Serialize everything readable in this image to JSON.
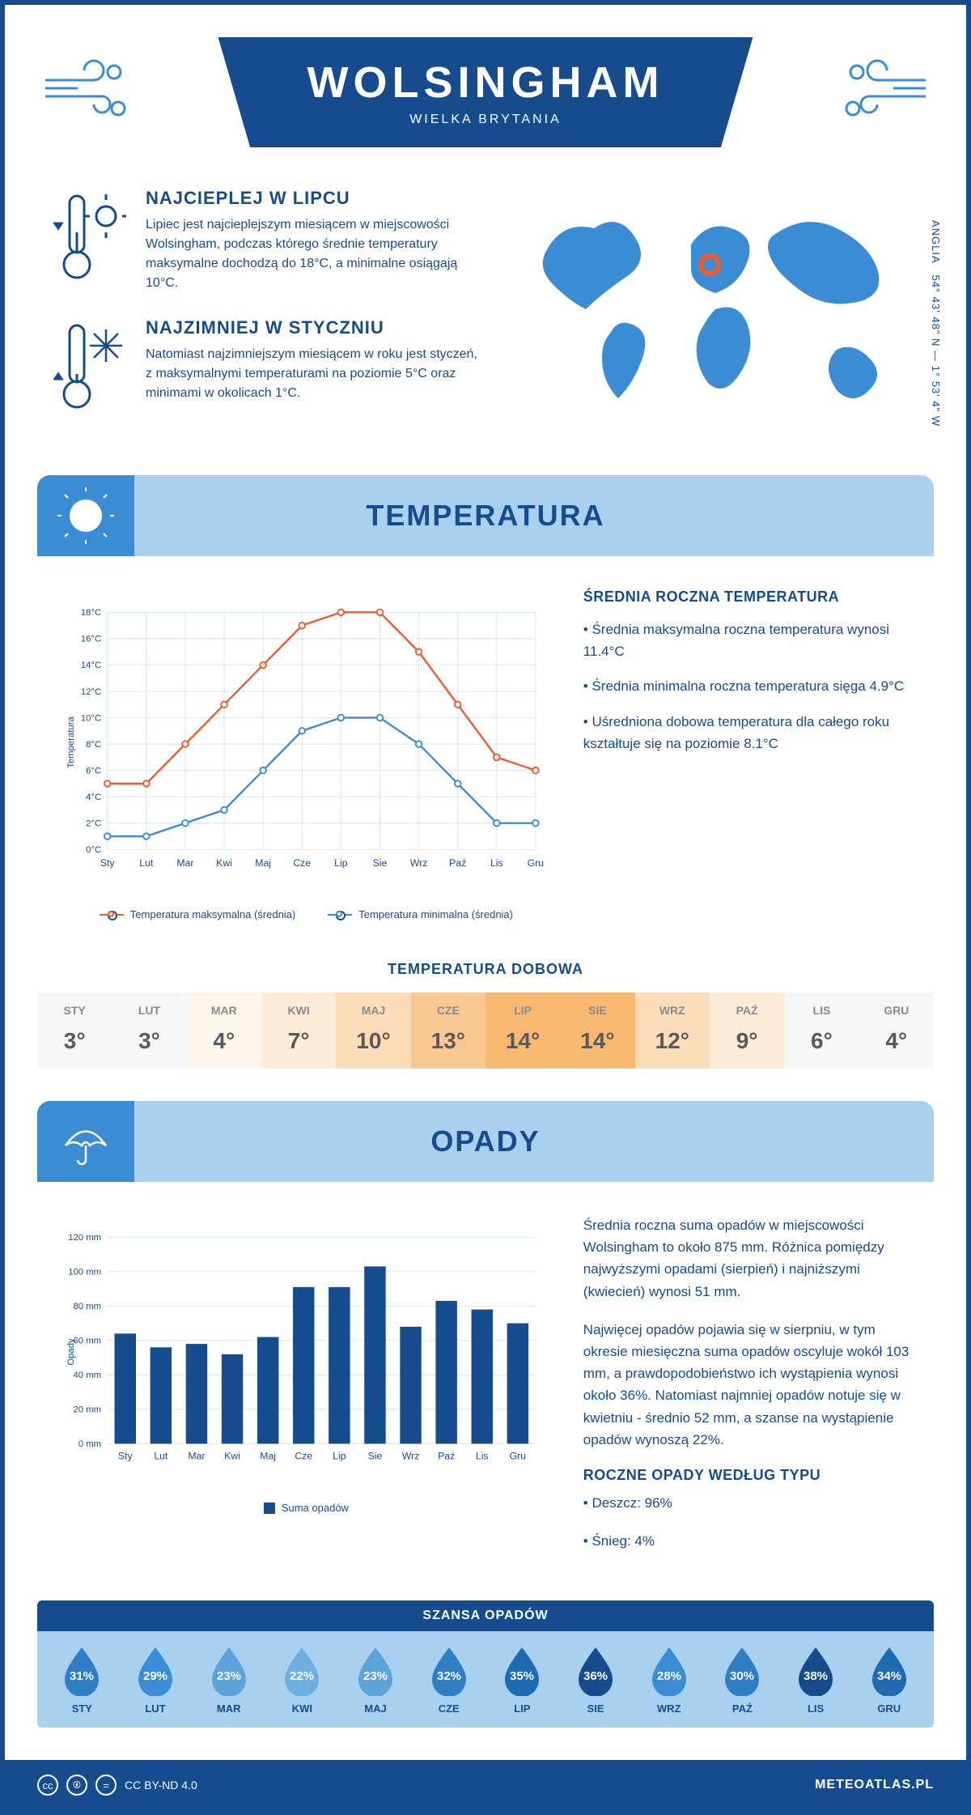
{
  "header": {
    "title": "WOLSINGHAM",
    "subtitle": "WIELKA BRYTANIA",
    "coords": "54° 43' 48\" N — 1° 53' 4\" W",
    "region": "ANGLIA"
  },
  "info": {
    "warm": {
      "title": "NAJCIEPLEJ W LIPCU",
      "text": "Lipiec jest najcieplejszym miesiącem w miejscowości Wolsingham, podczas którego średnie temperatury maksymalne dochodzą do 18°C, a minimalne osiągają 10°C."
    },
    "cold": {
      "title": "NAJZIMNIEJ W STYCZNIU",
      "text": "Natomiast najzimniejszym miesiącem w roku jest styczeń, z maksymalnymi temperaturami na poziomie 5°C oraz minimami w okolicach 1°C."
    }
  },
  "sections": {
    "temperature": "TEMPERATURA",
    "precipitation": "OPADY"
  },
  "temp_chart": {
    "type": "line",
    "months": [
      "Sty",
      "Lut",
      "Mar",
      "Kwi",
      "Maj",
      "Cze",
      "Lip",
      "Sie",
      "Wrz",
      "Paź",
      "Lis",
      "Gru"
    ],
    "max_series": [
      5,
      5,
      8,
      11,
      14,
      17,
      18,
      18,
      15,
      11,
      7,
      6
    ],
    "min_series": [
      1,
      1,
      2,
      3,
      6,
      9,
      10,
      10,
      8,
      5,
      2,
      2
    ],
    "max_color": "#f15a29",
    "min_color": "#3a8dd4",
    "ylim": [
      0,
      18
    ],
    "ytick": 2,
    "y_label": "Temperatura",
    "grid_color": "#d0e4f5",
    "legend_max": "Temperatura maksymalna (średnia)",
    "legend_min": "Temperatura minimalna (średnia)"
  },
  "temp_side": {
    "title": "ŚREDNIA ROCZNA TEMPERATURA",
    "p1": "• Średnia maksymalna roczna temperatura wynosi 11.4°C",
    "p2": "• Średnia minimalna roczna temperatura sięga 4.9°C",
    "p3": "• Uśredniona dobowa temperatura dla całego roku kształtuje się na poziomie 8.1°C"
  },
  "daily": {
    "title": "TEMPERATURA DOBOWA",
    "months": [
      "STY",
      "LUT",
      "MAR",
      "KWI",
      "MAJ",
      "CZE",
      "LIP",
      "SIE",
      "WRZ",
      "PAŹ",
      "LIS",
      "GRU"
    ],
    "values": [
      "3°",
      "3°",
      "4°",
      "7°",
      "10°",
      "13°",
      "14°",
      "14°",
      "12°",
      "9°",
      "6°",
      "4°"
    ],
    "bg_colors": [
      "#f6f6f6",
      "#f6f6f6",
      "#fdf6ed",
      "#fdecd8",
      "#fbdcb8",
      "#f9c890",
      "#f7b870",
      "#f7b870",
      "#fbdcb8",
      "#fdecd8",
      "#f6f6f6",
      "#f6f6f6"
    ]
  },
  "precip_chart": {
    "type": "bar",
    "months": [
      "Sty",
      "Lut",
      "Mar",
      "Kwi",
      "Maj",
      "Cze",
      "Lip",
      "Sie",
      "Wrz",
      "Paź",
      "Lis",
      "Gru"
    ],
    "values": [
      64,
      56,
      58,
      52,
      62,
      91,
      91,
      103,
      68,
      83,
      78,
      70
    ],
    "ylim": [
      0,
      120
    ],
    "ytick": 20,
    "y_label": "Opady",
    "bar_color": "#164b8e",
    "grid_color": "#d0e4f5",
    "legend": "Suma opadów"
  },
  "precip_side": {
    "p1": "Średnia roczna suma opadów w miejscowości Wolsingham to około 875 mm. Różnica pomiędzy najwyższymi opadami (sierpień) i najniższymi (kwiecień) wynosi 51 mm.",
    "p2": "Najwięcej opadów pojawia się w sierpniu, w tym okresie miesięczna suma opadów oscyluje wokół 103 mm, a prawdopodobieństwo ich wystąpienia wynosi około 36%. Natomiast najmniej opadów notuje się w kwietniu - średnio 52 mm, a szanse na wystąpienie opadów wynoszą 22%.",
    "type_title": "ROCZNE OPADY WEDŁUG TYPU",
    "type_rain": "• Deszcz: 96%",
    "type_snow": "• Śnieg: 4%"
  },
  "chance": {
    "title": "SZANSA OPADÓW",
    "months": [
      "STY",
      "LUT",
      "MAR",
      "KWI",
      "MAJ",
      "CZE",
      "LIP",
      "SIE",
      "WRZ",
      "PAŹ",
      "LIS",
      "GRU"
    ],
    "values": [
      "31%",
      "29%",
      "23%",
      "22%",
      "23%",
      "32%",
      "35%",
      "36%",
      "28%",
      "30%",
      "38%",
      "34%"
    ],
    "colors": [
      "#2f7ec5",
      "#3a8dd4",
      "#5aa3db",
      "#6bb0e0",
      "#5aa3db",
      "#2f7ec5",
      "#1e6bb3",
      "#164b8e",
      "#3a8dd4",
      "#2f7ec5",
      "#164b8e",
      "#1e6bb3"
    ]
  },
  "footer": {
    "license": "CC BY-ND 4.0",
    "site": "METEOATLAS.PL"
  }
}
